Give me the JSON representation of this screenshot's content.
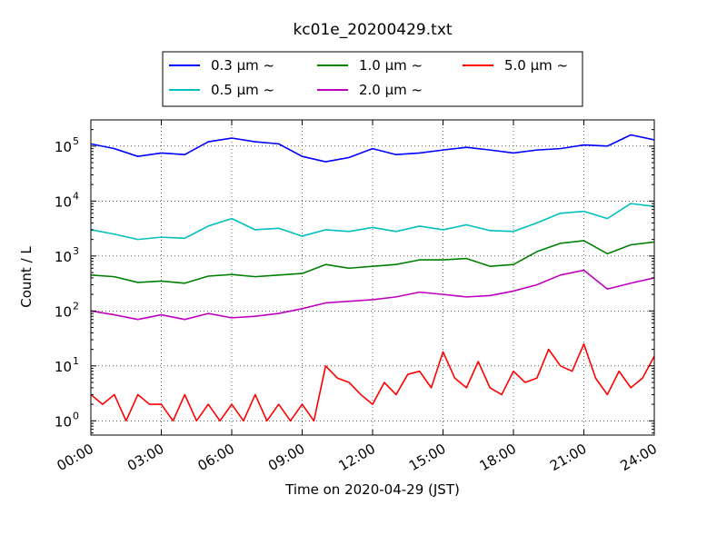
{
  "chart_data": {
    "type": "line",
    "title": "kc01e_20200429.txt",
    "xlabel": "Time on 2020-04-29 (JST)",
    "ylabel": "Count / L",
    "y_scale": "log",
    "ylim": [
      0.55,
      300000
    ],
    "xlim": [
      "00:00",
      "24:00"
    ],
    "x_ticks": [
      "00:00",
      "03:00",
      "06:00",
      "09:00",
      "12:00",
      "15:00",
      "18:00",
      "21:00",
      "24:00"
    ],
    "y_ticks": [
      {
        "value": 1,
        "base": "10",
        "exp": "0"
      },
      {
        "value": 10,
        "base": "10",
        "exp": "1"
      },
      {
        "value": 100,
        "base": "10",
        "exp": "2"
      },
      {
        "value": 1000,
        "base": "10",
        "exp": "3"
      },
      {
        "value": 10000,
        "base": "10",
        "exp": "4"
      },
      {
        "value": 100000,
        "base": "10",
        "exp": "5"
      }
    ],
    "grid": true,
    "legend_placement": "top-center, above plot",
    "series": [
      {
        "name": "0.3 μm ~",
        "color": "#0000ff",
        "x": [
          0,
          1,
          2,
          3,
          4,
          5,
          6,
          7,
          8,
          9,
          10,
          11,
          12,
          13,
          14,
          15,
          16,
          17,
          18,
          19,
          20,
          21,
          22,
          23,
          24
        ],
        "y": [
          110000,
          90000,
          65000,
          75000,
          70000,
          120000,
          140000,
          120000,
          110000,
          65000,
          52000,
          62000,
          90000,
          70000,
          75000,
          85000,
          95000,
          85000,
          75000,
          85000,
          90000,
          105000,
          100000,
          160000,
          130000
        ]
      },
      {
        "name": "0.5 μm ~",
        "color": "#00bfbf",
        "x": [
          0,
          1,
          2,
          3,
          4,
          5,
          6,
          7,
          8,
          9,
          10,
          11,
          12,
          13,
          14,
          15,
          16,
          17,
          18,
          19,
          20,
          21,
          22,
          23,
          24
        ],
        "y": [
          3000,
          2500,
          2000,
          2200,
          2100,
          3500,
          4800,
          3000,
          3200,
          2300,
          3000,
          2800,
          3300,
          2800,
          3500,
          3000,
          3700,
          2900,
          2800,
          4000,
          6000,
          6500,
          4800,
          9000,
          8000
        ]
      },
      {
        "name": "1.0 μm ~",
        "color": "#008000",
        "x": [
          0,
          1,
          2,
          3,
          4,
          5,
          6,
          7,
          8,
          9,
          10,
          11,
          12,
          13,
          14,
          15,
          16,
          17,
          18,
          19,
          20,
          21,
          22,
          23,
          24
        ],
        "y": [
          450,
          420,
          330,
          350,
          320,
          430,
          460,
          420,
          450,
          480,
          700,
          600,
          650,
          700,
          850,
          850,
          900,
          650,
          700,
          1200,
          1700,
          1900,
          1100,
          1600,
          1800
        ]
      },
      {
        "name": "2.0 μm ~",
        "color": "#bf00bf",
        "x": [
          0,
          1,
          2,
          3,
          4,
          5,
          6,
          7,
          8,
          9,
          10,
          11,
          12,
          13,
          14,
          15,
          16,
          17,
          18,
          19,
          20,
          21,
          22,
          23,
          24
        ],
        "y": [
          100,
          85,
          70,
          85,
          70,
          90,
          75,
          80,
          90,
          110,
          140,
          150,
          160,
          180,
          220,
          200,
          180,
          190,
          230,
          300,
          450,
          550,
          250,
          320,
          400
        ]
      },
      {
        "name": "5.0 μm ~",
        "color": "#ff0000",
        "x": [
          0,
          0.5,
          1,
          1.5,
          2,
          2.5,
          3,
          3.5,
          4,
          4.5,
          5,
          5.5,
          6,
          6.5,
          7,
          7.5,
          8,
          8.5,
          9,
          9.5,
          10,
          10.5,
          11,
          11.5,
          12,
          12.5,
          13,
          13.5,
          14,
          14.5,
          15,
          15.5,
          16,
          16.5,
          17,
          17.5,
          18,
          18.5,
          19,
          19.5,
          20,
          20.5,
          21,
          21.5,
          22,
          22.5,
          23,
          23.5,
          24
        ],
        "y": [
          3,
          2,
          3,
          1,
          3,
          2,
          2,
          1,
          3,
          1,
          2,
          1,
          2,
          1,
          3,
          1,
          2,
          1,
          2,
          1,
          10,
          6,
          5,
          3,
          2,
          5,
          3,
          7,
          8,
          4,
          18,
          6,
          4,
          12,
          4,
          3,
          8,
          5,
          6,
          20,
          10,
          8,
          25,
          6,
          3,
          8,
          4,
          6,
          15
        ]
      }
    ]
  }
}
